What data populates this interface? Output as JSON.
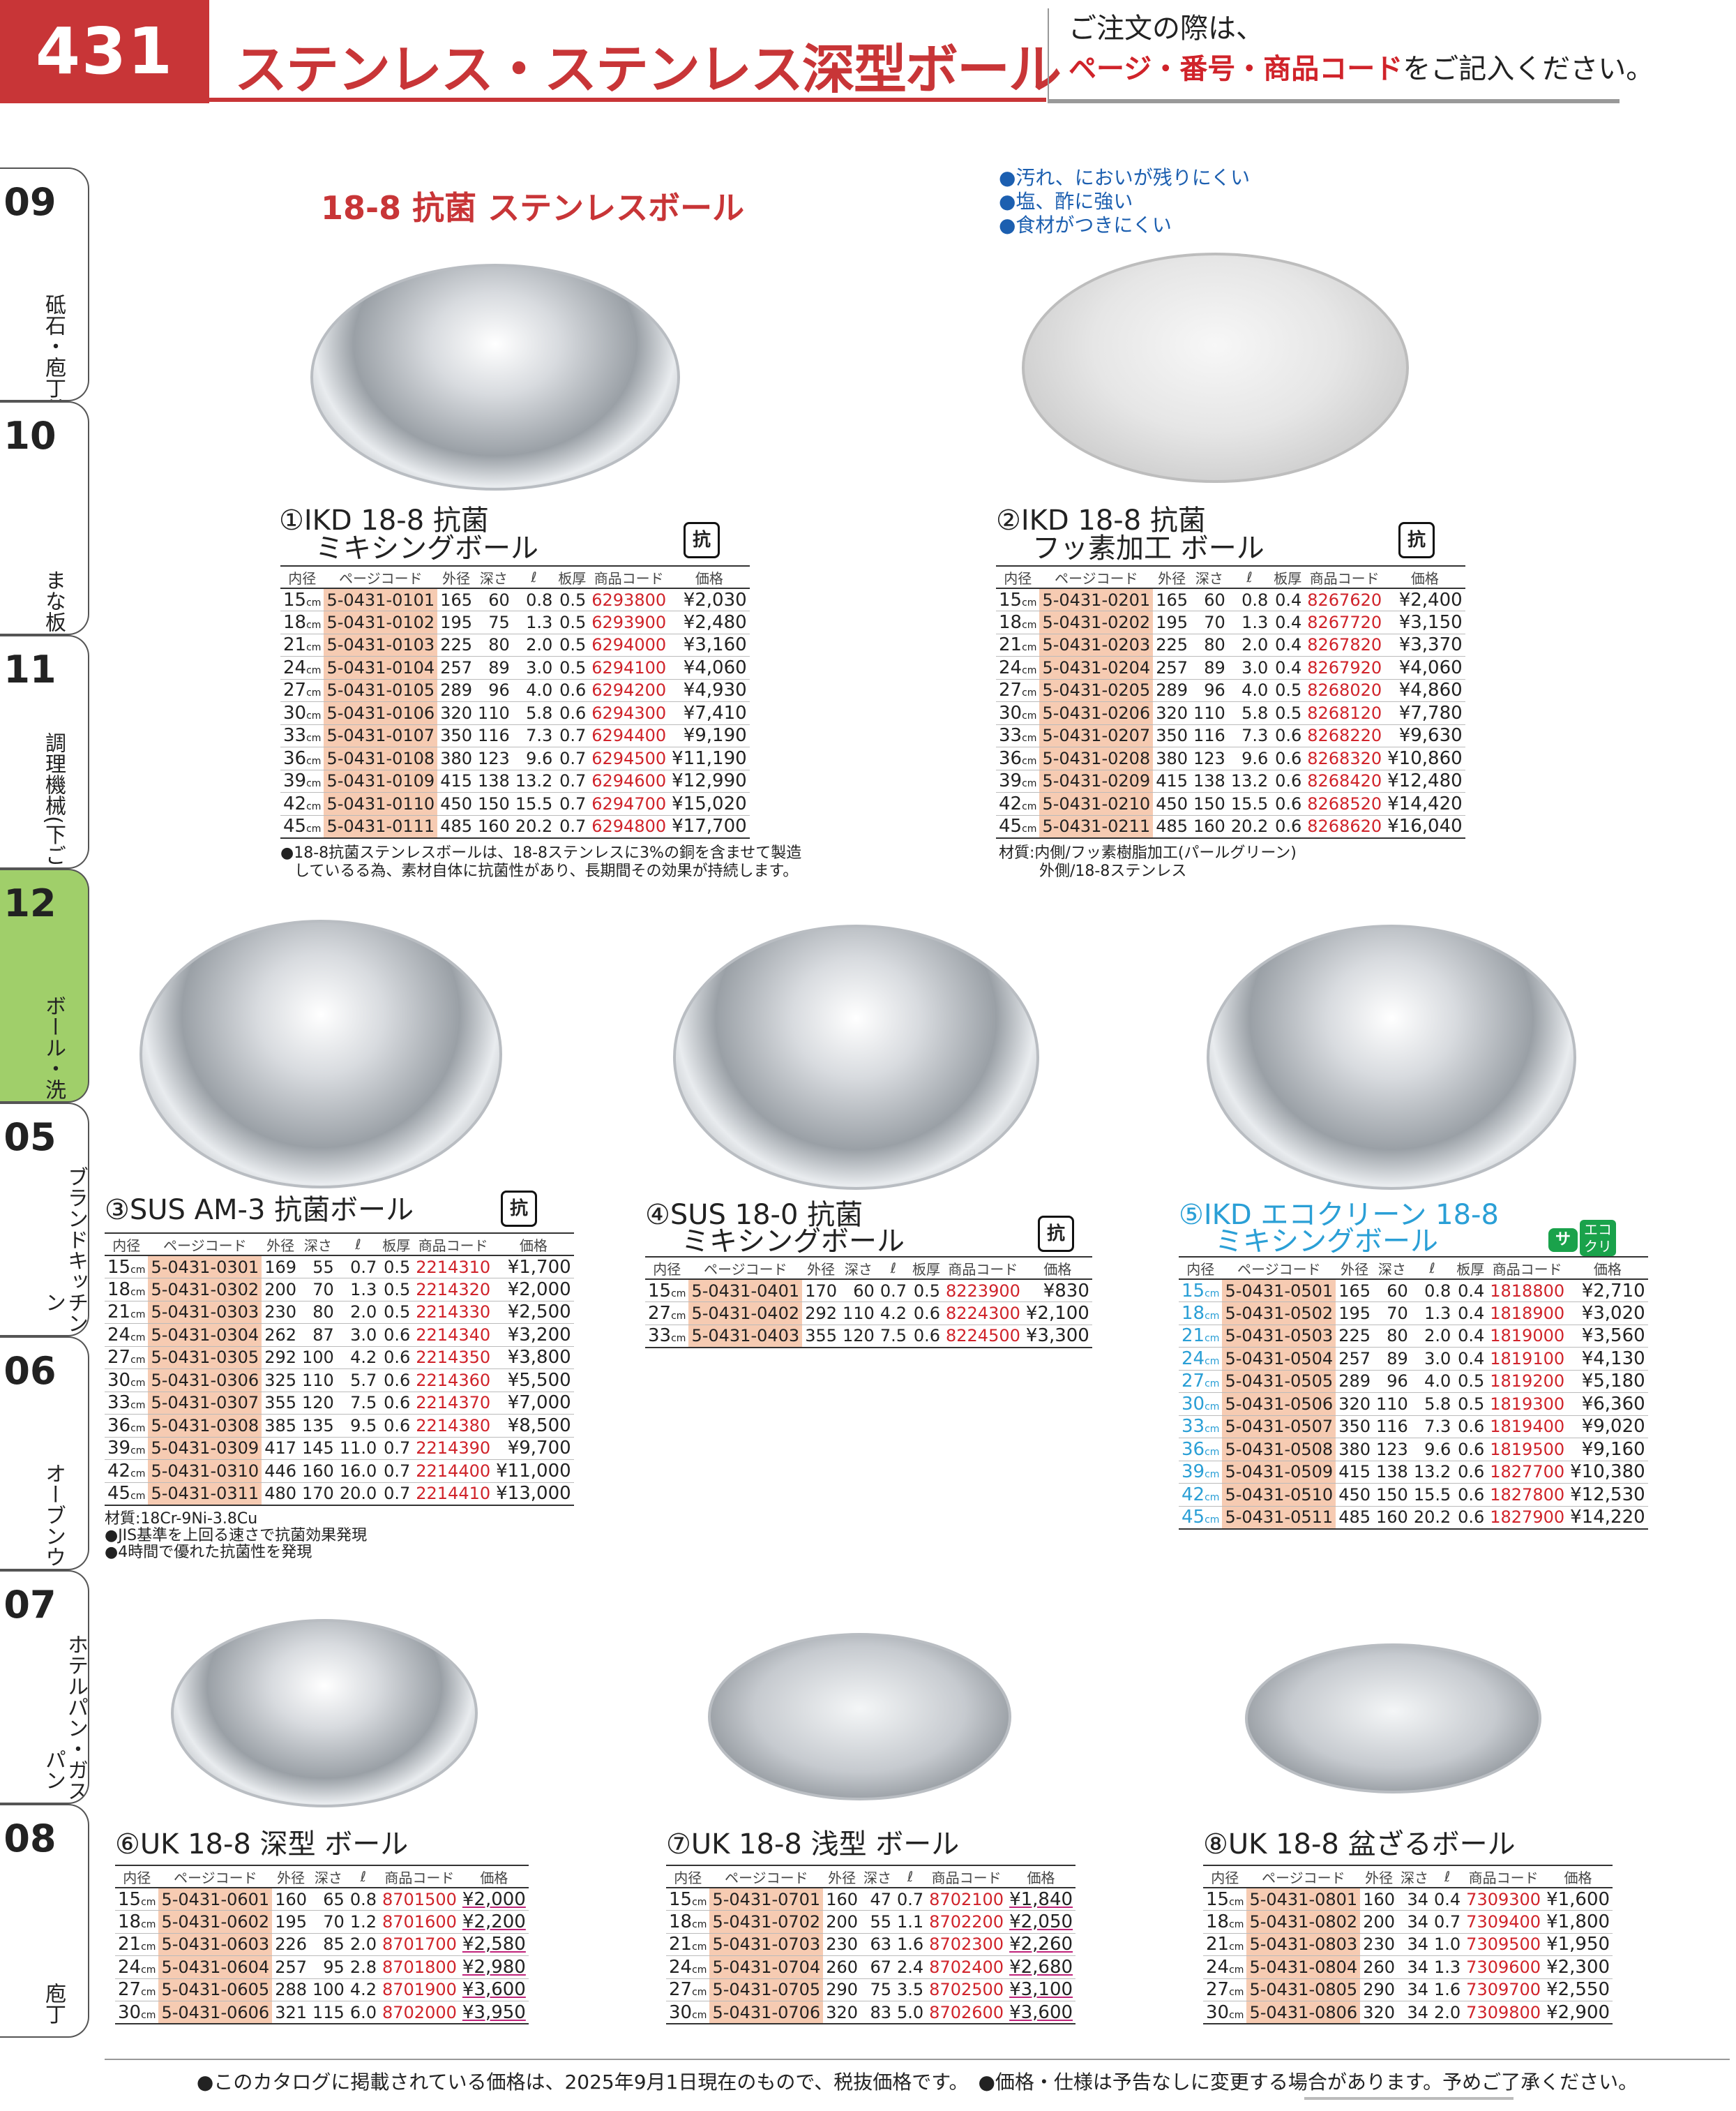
{
  "header": {
    "page_number": "431",
    "title": "ステンレス・ステンレス深型ボール",
    "order_note_line1": "ご注文の際は、",
    "order_note_line2_red": "ページ・番号・商品コード",
    "order_note_line2_rest": "をご記入ください。"
  },
  "side_tabs": [
    {
      "num": "09",
      "label": "砥石・庖丁差し"
    },
    {
      "num": "10",
      "label": "まな板"
    },
    {
      "num": "11",
      "label": "調理機械(下ごしらえ)"
    },
    {
      "num": "12",
      "label": "ボール・洗い桶"
    },
    {
      "num": "05",
      "label": "ブランドキッチンコレクション"
    },
    {
      "num": "06",
      "label": "オーブンウェア"
    },
    {
      "num": "07",
      "label": "ホテルパン・ガストロノームパン"
    },
    {
      "num": "08",
      "label": "庖丁"
    }
  ],
  "section_title": "18-8 抗菌 ステンレスボール",
  "features": [
    "●汚れ、においが残りにくい",
    "●塩、酢に強い",
    "●食材がつきにくい"
  ],
  "col_headers": {
    "size": "内径",
    "pc": "ページコード",
    "od": "外径",
    "depth": "深さ",
    "l": "ℓ",
    "thick": "板厚",
    "code": "商品コード",
    "price": "価格"
  },
  "products": {
    "p1": {
      "title1": "①IKD 18-8 抗菌",
      "title2": "ミキシングボール",
      "badge": "抗",
      "rows": [
        {
          "size": "15",
          "pc": "5-0431-0101",
          "od": "165",
          "depth": "60",
          "l": "0.8",
          "t": "0.5",
          "code": "6293800",
          "price": "¥2,030"
        },
        {
          "size": "18",
          "pc": "5-0431-0102",
          "od": "195",
          "depth": "75",
          "l": "1.3",
          "t": "0.5",
          "code": "6293900",
          "price": "¥2,480"
        },
        {
          "size": "21",
          "pc": "5-0431-0103",
          "od": "225",
          "depth": "80",
          "l": "2.0",
          "t": "0.5",
          "code": "6294000",
          "price": "¥3,160"
        },
        {
          "size": "24",
          "pc": "5-0431-0104",
          "od": "257",
          "depth": "89",
          "l": "3.0",
          "t": "0.5",
          "code": "6294100",
          "price": "¥4,060"
        },
        {
          "size": "27",
          "pc": "5-0431-0105",
          "od": "289",
          "depth": "96",
          "l": "4.0",
          "t": "0.6",
          "code": "6294200",
          "price": "¥4,930"
        },
        {
          "size": "30",
          "pc": "5-0431-0106",
          "od": "320",
          "depth": "110",
          "l": "5.8",
          "t": "0.6",
          "code": "6294300",
          "price": "¥7,410"
        },
        {
          "size": "33",
          "pc": "5-0431-0107",
          "od": "350",
          "depth": "116",
          "l": "7.3",
          "t": "0.7",
          "code": "6294400",
          "price": "¥9,190"
        },
        {
          "size": "36",
          "pc": "5-0431-0108",
          "od": "380",
          "depth": "123",
          "l": "9.6",
          "t": "0.7",
          "code": "6294500",
          "price": "¥11,190"
        },
        {
          "size": "39",
          "pc": "5-0431-0109",
          "od": "415",
          "depth": "138",
          "l": "13.2",
          "t": "0.7",
          "code": "6294600",
          "price": "¥12,990"
        },
        {
          "size": "42",
          "pc": "5-0431-0110",
          "od": "450",
          "depth": "150",
          "l": "15.5",
          "t": "0.7",
          "code": "6294700",
          "price": "¥15,020"
        },
        {
          "size": "45",
          "pc": "5-0431-0111",
          "od": "485",
          "depth": "160",
          "l": "20.2",
          "t": "0.7",
          "code": "6294800",
          "price": "¥17,700"
        }
      ],
      "notes": [
        "●18-8抗菌ステンレスボールは、18-8ステンレスに3%の銅を含ませて製造",
        "しているる為、素材自体に抗菌性があり、長期間その効果が持続します。"
      ]
    },
    "p2": {
      "title1": "②IKD 18-8 抗菌",
      "title2": "フッ素加工 ボール",
      "badge": "抗",
      "rows": [
        {
          "size": "15",
          "pc": "5-0431-0201",
          "od": "165",
          "depth": "60",
          "l": "0.8",
          "t": "0.4",
          "code": "8267620",
          "price": "¥2,400"
        },
        {
          "size": "18",
          "pc": "5-0431-0202",
          "od": "195",
          "depth": "70",
          "l": "1.3",
          "t": "0.4",
          "code": "8267720",
          "price": "¥3,150"
        },
        {
          "size": "21",
          "pc": "5-0431-0203",
          "od": "225",
          "depth": "80",
          "l": "2.0",
          "t": "0.4",
          "code": "8267820",
          "price": "¥3,370"
        },
        {
          "size": "24",
          "pc": "5-0431-0204",
          "od": "257",
          "depth": "89",
          "l": "3.0",
          "t": "0.4",
          "code": "8267920",
          "price": "¥4,060"
        },
        {
          "size": "27",
          "pc": "5-0431-0205",
          "od": "289",
          "depth": "96",
          "l": "4.0",
          "t": "0.5",
          "code": "8268020",
          "price": "¥4,860"
        },
        {
          "size": "30",
          "pc": "5-0431-0206",
          "od": "320",
          "depth": "110",
          "l": "5.8",
          "t": "0.5",
          "code": "8268120",
          "price": "¥7,780"
        },
        {
          "size": "33",
          "pc": "5-0431-0207",
          "od": "350",
          "depth": "116",
          "l": "7.3",
          "t": "0.6",
          "code": "8268220",
          "price": "¥9,630"
        },
        {
          "size": "36",
          "pc": "5-0431-0208",
          "od": "380",
          "depth": "123",
          "l": "9.6",
          "t": "0.6",
          "code": "8268320",
          "price": "¥10,860"
        },
        {
          "size": "39",
          "pc": "5-0431-0209",
          "od": "415",
          "depth": "138",
          "l": "13.2",
          "t": "0.6",
          "code": "8268420",
          "price": "¥12,480"
        },
        {
          "size": "42",
          "pc": "5-0431-0210",
          "od": "450",
          "depth": "150",
          "l": "15.5",
          "t": "0.6",
          "code": "8268520",
          "price": "¥14,420"
        },
        {
          "size": "45",
          "pc": "5-0431-0211",
          "od": "485",
          "depth": "160",
          "l": "20.2",
          "t": "0.6",
          "code": "8268620",
          "price": "¥16,040"
        }
      ],
      "notes": [
        "材質:内側/フッ素樹脂加工(パールグリーン)",
        "外側/18-8ステンレス"
      ]
    },
    "p3": {
      "title1": "③SUS AM-3 抗菌ボール",
      "badge": "抗",
      "rows": [
        {
          "size": "15",
          "pc": "5-0431-0301",
          "od": "169",
          "depth": "55",
          "l": "0.7",
          "t": "0.5",
          "code": "2214310",
          "price": "¥1,700"
        },
        {
          "size": "18",
          "pc": "5-0431-0302",
          "od": "200",
          "depth": "70",
          "l": "1.3",
          "t": "0.5",
          "code": "2214320",
          "price": "¥2,000"
        },
        {
          "size": "21",
          "pc": "5-0431-0303",
          "od": "230",
          "depth": "80",
          "l": "2.0",
          "t": "0.5",
          "code": "2214330",
          "price": "¥2,500"
        },
        {
          "size": "24",
          "pc": "5-0431-0304",
          "od": "262",
          "depth": "87",
          "l": "3.0",
          "t": "0.6",
          "code": "2214340",
          "price": "¥3,200"
        },
        {
          "size": "27",
          "pc": "5-0431-0305",
          "od": "292",
          "depth": "100",
          "l": "4.2",
          "t": "0.6",
          "code": "2214350",
          "price": "¥3,800"
        },
        {
          "size": "30",
          "pc": "5-0431-0306",
          "od": "325",
          "depth": "110",
          "l": "5.7",
          "t": "0.6",
          "code": "2214360",
          "price": "¥5,500"
        },
        {
          "size": "33",
          "pc": "5-0431-0307",
          "od": "355",
          "depth": "120",
          "l": "7.5",
          "t": "0.6",
          "code": "2214370",
          "price": "¥7,000"
        },
        {
          "size": "36",
          "pc": "5-0431-0308",
          "od": "385",
          "depth": "135",
          "l": "9.5",
          "t": "0.6",
          "code": "2214380",
          "price": "¥8,500"
        },
        {
          "size": "39",
          "pc": "5-0431-0309",
          "od": "417",
          "depth": "145",
          "l": "11.0",
          "t": "0.7",
          "code": "2214390",
          "price": "¥9,700"
        },
        {
          "size": "42",
          "pc": "5-0431-0310",
          "od": "446",
          "depth": "160",
          "l": "16.0",
          "t": "0.7",
          "code": "2214400",
          "price": "¥11,000"
        },
        {
          "size": "45",
          "pc": "5-0431-0311",
          "od": "480",
          "depth": "170",
          "l": "20.0",
          "t": "0.7",
          "code": "2214410",
          "price": "¥13,000"
        }
      ],
      "notes": [
        "材質:18Cr-9Ni-3.8Cu",
        "●JIS基準を上回る速さで抗菌効果発現",
        "●4時間で優れた抗菌性を発現"
      ]
    },
    "p4": {
      "title1": "④SUS 18-0 抗菌",
      "title2": "ミキシングボール",
      "badge": "抗",
      "rows": [
        {
          "size": "15",
          "pc": "5-0431-0401",
          "od": "170",
          "depth": "60",
          "l": "0.7",
          "t": "0.5",
          "code": "8223900",
          "price": "¥830"
        },
        {
          "size": "27",
          "pc": "5-0431-0402",
          "od": "292",
          "depth": "110",
          "l": "4.2",
          "t": "0.6",
          "code": "8224300",
          "price": "¥2,100"
        },
        {
          "size": "33",
          "pc": "5-0431-0403",
          "od": "355",
          "depth": "120",
          "l": "7.5",
          "t": "0.6",
          "code": "8224500",
          "price": "¥3,300"
        }
      ]
    },
    "p5": {
      "title1": "⑤IKD エコクリーン 18-8",
      "title2": "ミキシングボール",
      "badge": "サ1",
      "badge2": "エコ クリーン",
      "rows": [
        {
          "size": "15",
          "pc": "5-0431-0501",
          "od": "165",
          "depth": "60",
          "l": "0.8",
          "t": "0.4",
          "code": "1818800",
          "price": "¥2,710"
        },
        {
          "size": "18",
          "pc": "5-0431-0502",
          "od": "195",
          "depth": "70",
          "l": "1.3",
          "t": "0.4",
          "code": "1818900",
          "price": "¥3,020"
        },
        {
          "size": "21",
          "pc": "5-0431-0503",
          "od": "225",
          "depth": "80",
          "l": "2.0",
          "t": "0.4",
          "code": "1819000",
          "price": "¥3,560"
        },
        {
          "size": "24",
          "pc": "5-0431-0504",
          "od": "257",
          "depth": "89",
          "l": "3.0",
          "t": "0.4",
          "code": "1819100",
          "price": "¥4,130"
        },
        {
          "size": "27",
          "pc": "5-0431-0505",
          "od": "289",
          "depth": "96",
          "l": "4.0",
          "t": "0.5",
          "code": "1819200",
          "price": "¥5,180"
        },
        {
          "size": "30",
          "pc": "5-0431-0506",
          "od": "320",
          "depth": "110",
          "l": "5.8",
          "t": "0.5",
          "code": "1819300",
          "price": "¥6,360"
        },
        {
          "size": "33",
          "pc": "5-0431-0507",
          "od": "350",
          "depth": "116",
          "l": "7.3",
          "t": "0.6",
          "code": "1819400",
          "price": "¥9,020"
        },
        {
          "size": "36",
          "pc": "5-0431-0508",
          "od": "380",
          "depth": "123",
          "l": "9.6",
          "t": "0.6",
          "code": "1819500",
          "price": "¥9,160"
        },
        {
          "size": "39",
          "pc": "5-0431-0509",
          "od": "415",
          "depth": "138",
          "l": "13.2",
          "t": "0.6",
          "code": "1827700",
          "price": "¥10,380"
        },
        {
          "size": "42",
          "pc": "5-0431-0510",
          "od": "450",
          "depth": "150",
          "l": "15.5",
          "t": "0.6",
          "code": "1827800",
          "price": "¥12,530"
        },
        {
          "size": "45",
          "pc": "5-0431-0511",
          "od": "485",
          "depth": "160",
          "l": "20.2",
          "t": "0.6",
          "code": "1827900",
          "price": "¥14,220"
        }
      ]
    },
    "p6": {
      "title1": "⑥UK 18-8 深型 ボール",
      "rows": [
        {
          "size": "15",
          "pc": "5-0431-0601",
          "od": "160",
          "depth": "65",
          "l": "0.8",
          "code": "8701500",
          "price": "¥2,000"
        },
        {
          "size": "18",
          "pc": "5-0431-0602",
          "od": "195",
          "depth": "70",
          "l": "1.2",
          "code": "8701600",
          "price": "¥2,200"
        },
        {
          "size": "21",
          "pc": "5-0431-0603",
          "od": "226",
          "depth": "85",
          "l": "2.0",
          "code": "8701700",
          "price": "¥2,580"
        },
        {
          "size": "24",
          "pc": "5-0431-0604",
          "od": "257",
          "depth": "95",
          "l": "2.8",
          "code": "8701800",
          "price": "¥2,980"
        },
        {
          "size": "27",
          "pc": "5-0431-0605",
          "od": "288",
          "depth": "100",
          "l": "4.2",
          "code": "8701900",
          "price": "¥3,600"
        },
        {
          "size": "30",
          "pc": "5-0431-0606",
          "od": "321",
          "depth": "115",
          "l": "6.0",
          "code": "8702000",
          "price": "¥3,950"
        }
      ]
    },
    "p7": {
      "title1": "⑦UK 18-8 浅型 ボール",
      "rows": [
        {
          "size": "15",
          "pc": "5-0431-0701",
          "od": "160",
          "depth": "47",
          "l": "0.7",
          "code": "8702100",
          "price": "¥1,840"
        },
        {
          "size": "18",
          "pc": "5-0431-0702",
          "od": "200",
          "depth": "55",
          "l": "1.1",
          "code": "8702200",
          "price": "¥2,050"
        },
        {
          "size": "21",
          "pc": "5-0431-0703",
          "od": "230",
          "depth": "63",
          "l": "1.6",
          "code": "8702300",
          "price": "¥2,260"
        },
        {
          "size": "24",
          "pc": "5-0431-0704",
          "od": "260",
          "depth": "67",
          "l": "2.4",
          "code": "8702400",
          "price": "¥2,680"
        },
        {
          "size": "27",
          "pc": "5-0431-0705",
          "od": "290",
          "depth": "75",
          "l": "3.5",
          "code": "8702500",
          "price": "¥3,100"
        },
        {
          "size": "30",
          "pc": "5-0431-0706",
          "od": "320",
          "depth": "83",
          "l": "5.0",
          "code": "8702600",
          "price": "¥3,600"
        }
      ]
    },
    "p8": {
      "title1": "⑧UK 18-8 盆ざるボール",
      "rows": [
        {
          "size": "15",
          "pc": "5-0431-0801",
          "od": "160",
          "depth": "34",
          "l": "0.4",
          "code": "7309300",
          "price": "¥1,600"
        },
        {
          "size": "18",
          "pc": "5-0431-0802",
          "od": "200",
          "depth": "34",
          "l": "0.7",
          "code": "7309400",
          "price": "¥1,800"
        },
        {
          "size": "21",
          "pc": "5-0431-0803",
          "od": "230",
          "depth": "34",
          "l": "1.0",
          "code": "7309500",
          "price": "¥1,950"
        },
        {
          "size": "24",
          "pc": "5-0431-0804",
          "od": "260",
          "depth": "34",
          "l": "1.3",
          "code": "7309600",
          "price": "¥2,300"
        },
        {
          "size": "27",
          "pc": "5-0431-0805",
          "od": "290",
          "depth": "34",
          "l": "1.6",
          "code": "7309700",
          "price": "¥2,550"
        },
        {
          "size": "30",
          "pc": "5-0431-0806",
          "od": "320",
          "depth": "34",
          "l": "2.0",
          "code": "7309800",
          "price": "¥2,900"
        }
      ]
    }
  },
  "footer": "●このカタログに掲載されている価格は、2025年9月1日現在のもので、税抜価格です。　●価格・仕様は予告なしに変更する場合があります。予めご了承ください。",
  "colors": {
    "brand_red": "#c83537",
    "code_red": "#d0232a",
    "pagecode_bg": "#f6cbb2",
    "active_tab": "#a0cf6a",
    "eco_blue": "#2a9fd6"
  }
}
